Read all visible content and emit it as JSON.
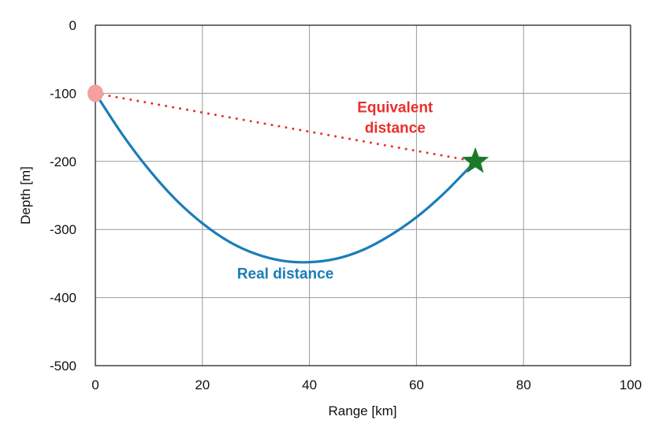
{
  "chart_data": {
    "type": "line",
    "title": "",
    "xlabel": "Range [km]",
    "ylabel": "Depth [m]",
    "xlim": [
      0,
      100
    ],
    "ylim": [
      -500,
      0
    ],
    "x_ticks": [
      "0",
      "20",
      "40",
      "60",
      "80",
      "100"
    ],
    "y_ticks": [
      "0",
      "-100",
      "-200",
      "-300",
      "-400",
      "-500"
    ],
    "grid": true,
    "series": [
      {
        "name": "Real distance",
        "color": "#1a7db8",
        "style": "solid",
        "x": [
          0,
          5,
          10,
          15,
          20,
          25,
          30,
          35,
          40,
          45,
          50,
          55,
          60,
          65,
          70,
          71
        ],
        "y": [
          -100,
          -160,
          -212,
          -256,
          -291,
          -318,
          -336,
          -346,
          -348,
          -343,
          -330,
          -309,
          -282,
          -248,
          -208,
          -200
        ]
      },
      {
        "name": "Equivalent distance",
        "color": "#e8302c",
        "style": "dotted",
        "x": [
          0,
          71
        ],
        "y": [
          -100,
          -200
        ]
      }
    ],
    "markers": [
      {
        "kind": "source",
        "shape": "circle",
        "color": "#f4a09e",
        "x": 0,
        "y": -100
      },
      {
        "kind": "receiver",
        "shape": "star",
        "color": "#1a7a2a",
        "x": 71,
        "y": -200
      }
    ],
    "annotations": [
      {
        "lines": [
          "Equivalent",
          "distance"
        ],
        "color": "#e8302c",
        "x": 56,
        "y": -128
      },
      {
        "lines": [
          "Real distance"
        ],
        "color": "#1a7db8",
        "x": 35.5,
        "y": -372
      }
    ]
  }
}
